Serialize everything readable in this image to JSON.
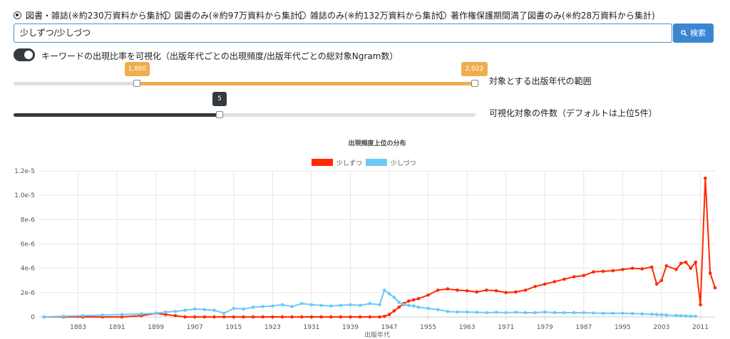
{
  "search_options": [
    "図書・雑誌(※約230万資料から集計)",
    "図書のみ(※約97万資料から集計)",
    "雑誌のみ(※約132万資料から集計)",
    "著作権保護期間満了図書のみ(※約28万資料から集計)"
  ],
  "search": {
    "query": "少しずつ/少しづつ",
    "button": "検索"
  },
  "toggle_label": "キーワードの出現比率を可視化（出版年代ごとの出現頻度/出版年代ごとの総対象Ngram数）",
  "range_slider": {
    "low": "1,860",
    "high": "2,022",
    "label": "対象とする出版年代の範囲"
  },
  "count_slider": {
    "value": "5",
    "label": "可視化対象の件数（デフォルトは上位5件）"
  },
  "chart_data": {
    "type": "line",
    "title": "出現頻度上位の分布",
    "xlabel": "出版年代",
    "x": [
      1876,
      1880,
      1884,
      1888,
      1892,
      1896,
      1899,
      1901,
      1903,
      1905,
      1907,
      1909,
      1911,
      1913,
      1915,
      1917,
      1919,
      1921,
      1923,
      1925,
      1927,
      1929,
      1931,
      1933,
      1935,
      1937,
      1939,
      1941,
      1943,
      1945,
      1946,
      1947,
      1948,
      1949,
      1950,
      1951,
      1952,
      1953,
      1955,
      1957,
      1959,
      1961,
      1963,
      1965,
      1967,
      1969,
      1971,
      1973,
      1975,
      1977,
      1979,
      1981,
      1983,
      1985,
      1987,
      1989,
      1991,
      1993,
      1995,
      1997,
      1999,
      2001,
      2002,
      2003,
      2004,
      2006,
      2007,
      2008,
      2009,
      2010,
      2011,
      2012,
      2013,
      2014
    ],
    "series": [
      {
        "name": "少しずつ",
        "color": "#ff2a00",
        "values": [
          0,
          0,
          0,
          0,
          0,
          1e-07,
          3e-07,
          2e-07,
          1e-07,
          0,
          0,
          0,
          0,
          0,
          0,
          0,
          0,
          0,
          0,
          0,
          0,
          0,
          0,
          0,
          0,
          0,
          0,
          0,
          0,
          0,
          5e-08,
          2e-07,
          5e-07,
          8e-07,
          1.1e-06,
          1.3e-06,
          1.4e-06,
          1.5e-06,
          1.8e-06,
          2.2e-06,
          2.3e-06,
          2.2e-06,
          2.15e-06,
          2.05e-06,
          2.2e-06,
          2.15e-06,
          2e-06,
          2.05e-06,
          2.2e-06,
          2.5e-06,
          2.7e-06,
          2.9e-06,
          3.1e-06,
          3.3e-06,
          3.4e-06,
          3.7e-06,
          3.75e-06,
          3.8e-06,
          3.9e-06,
          4e-06,
          3.95e-06,
          4.1e-06,
          2.7e-06,
          3e-06,
          4.2e-06,
          3.9e-06,
          4.4e-06,
          4.5e-06,
          4e-06,
          4.5e-06,
          1e-06,
          1.14e-05,
          3.6e-06,
          2.4e-06
        ]
      },
      {
        "name": "少しづつ",
        "color": "#6ccaf8",
        "values": [
          0,
          5e-08,
          1e-07,
          1.5e-07,
          2e-07,
          2.5e-07,
          3e-07,
          4e-07,
          4.5e-07,
          5.5e-07,
          6.5e-07,
          6e-07,
          5.5e-07,
          3e-07,
          7e-07,
          6.5e-07,
          8e-07,
          8.5e-07,
          9e-07,
          1e-06,
          8.5e-07,
          1.1e-06,
          1e-06,
          9.5e-07,
          9e-07,
          9.5e-07,
          1e-06,
          9.5e-07,
          1.1e-06,
          1e-06,
          2.2e-06,
          1.9e-06,
          1.6e-06,
          1.2e-06,
          1e-06,
          9.5e-07,
          9e-07,
          8e-07,
          7e-07,
          6e-07,
          4.5e-07,
          4e-07,
          4e-07,
          3.8e-07,
          3.5e-07,
          3.8e-07,
          3.5e-07,
          3.8e-07,
          3.5e-07,
          3.5e-07,
          4e-07,
          3.5e-07,
          3.5e-07,
          3.5e-07,
          3.5e-07,
          3.2e-07,
          3e-07,
          3e-07,
          3e-07,
          2.8e-07,
          2.5e-07,
          2.2e-07,
          2e-07,
          1.8e-07,
          1.5e-07,
          1.2e-07,
          1e-07,
          8e-08,
          6e-08,
          5e-08,
          null,
          null,
          null,
          null
        ]
      }
    ],
    "xlim": [
      1875,
      2014
    ],
    "xticks": [
      1883,
      1891,
      1899,
      1907,
      1915,
      1923,
      1931,
      1939,
      1947,
      1955,
      1963,
      1971,
      1979,
      1987,
      1995,
      2003,
      2011
    ],
    "ylim": [
      0,
      1.2e-05
    ],
    "yticks": [
      0,
      {
        "value": 2e-06,
        "label": "2e-6"
      },
      {
        "value": 4e-06,
        "label": "4e-6"
      },
      {
        "value": 6e-06,
        "label": "6e-6"
      },
      {
        "value": 8e-06,
        "label": "8e-6"
      },
      {
        "value": 1e-05,
        "label": "1.0e-5"
      },
      {
        "value": 1.2e-05,
        "label": "1.2e-5"
      }
    ],
    "grid": true
  }
}
